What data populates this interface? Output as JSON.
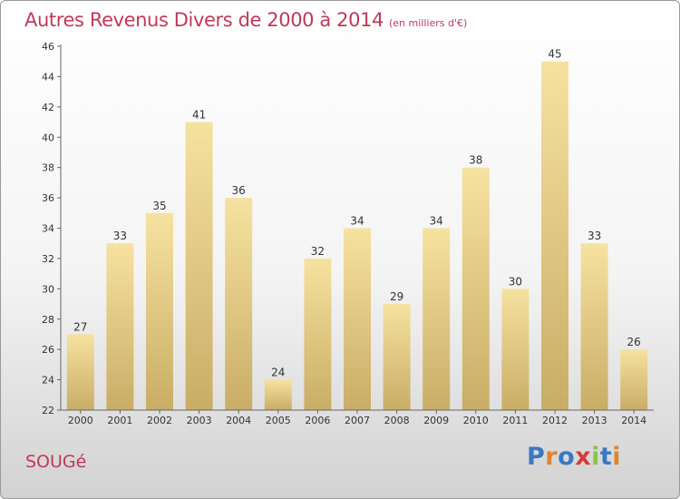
{
  "header": {
    "title": "Autres Revenus Divers de 2000 à 2014",
    "unit_note": "(en milliers d'€)"
  },
  "footer": {
    "place": "SOUGé",
    "logo_text": "Proxiti",
    "logo_colors": [
      "#3a78c2",
      "#e0842b",
      "#3a78c2",
      "#d83a3a",
      "#8bc34a",
      "#3a78c2",
      "#e0842b"
    ]
  },
  "chart_data": {
    "type": "bar",
    "title": "Autres Revenus Divers de 2000 à 2014",
    "subtitle": "(en milliers d'€)",
    "categories": [
      "2000",
      "2001",
      "2002",
      "2003",
      "2004",
      "2005",
      "2006",
      "2007",
      "2008",
      "2009",
      "2010",
      "2011",
      "2012",
      "2013",
      "2014"
    ],
    "values": [
      27,
      33,
      35,
      41,
      36,
      24,
      32,
      34,
      29,
      34,
      38,
      30,
      45,
      33,
      26
    ],
    "ylim": [
      22,
      46
    ],
    "yticks": [
      22,
      24,
      26,
      28,
      30,
      32,
      34,
      36,
      38,
      40,
      42,
      44,
      46
    ],
    "grid": false,
    "legend": "none",
    "bar_color_top": "#f6e2a0",
    "bar_color_bottom": "#c9ad66"
  }
}
